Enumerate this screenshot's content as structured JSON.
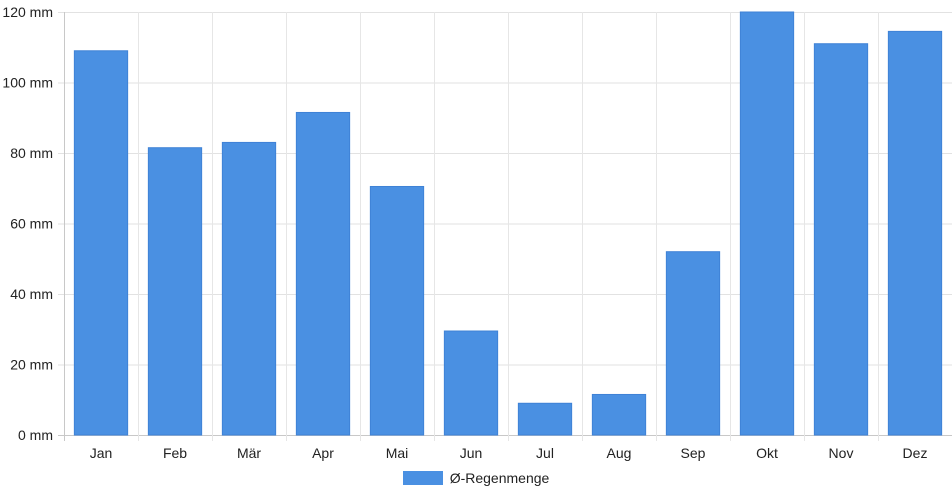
{
  "chart_data": {
    "type": "bar",
    "categories": [
      "Jan",
      "Feb",
      "Mär",
      "Apr",
      "Mai",
      "Jun",
      "Jul",
      "Aug",
      "Sep",
      "Okt",
      "Nov",
      "Dez"
    ],
    "series": [
      {
        "name": "Ø-Regenmenge",
        "values": [
          109,
          81.5,
          83,
          91.5,
          70.5,
          29.5,
          9,
          11.5,
          52,
          120,
          111,
          114.5
        ],
        "color": "#4a90e2"
      }
    ],
    "yticks": [
      "0 mm",
      "20 mm",
      "40 mm",
      "60 mm",
      "80 mm",
      "100 mm",
      "120 mm"
    ],
    "ylim": [
      0,
      120
    ],
    "grid": true,
    "legend_position": "bottom"
  }
}
